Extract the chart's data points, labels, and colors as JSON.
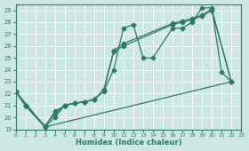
{
  "xlabel": "Humidex (Indice chaleur)",
  "xlim": [
    0,
    23
  ],
  "ylim": [
    19,
    29.5
  ],
  "yticks": [
    19,
    20,
    21,
    22,
    23,
    24,
    25,
    26,
    27,
    28,
    29
  ],
  "xticks": [
    0,
    1,
    2,
    3,
    4,
    5,
    6,
    7,
    8,
    9,
    10,
    11,
    12,
    13,
    14,
    15,
    16,
    17,
    18,
    19,
    20,
    21,
    22,
    23
  ],
  "bg_color": "#cce8e0",
  "grid_color": "#ffffff",
  "line_color": "#2d7a6b",
  "line1_x": [
    0,
    1,
    3,
    4,
    5,
    6,
    7,
    8,
    9,
    10,
    11,
    12,
    13,
    14,
    16,
    17,
    18,
    19,
    20,
    21,
    22
  ],
  "line1_y": [
    22.2,
    21.0,
    19.2,
    20.0,
    21.0,
    21.2,
    21.3,
    21.5,
    22.2,
    24.0,
    27.5,
    27.8,
    25.0,
    25.0,
    27.5,
    27.5,
    28.0,
    29.2,
    29.2,
    23.8,
    23.0
  ],
  "line2_x": [
    0,
    1,
    3,
    4,
    5,
    6,
    7,
    8,
    9,
    10,
    11,
    16,
    17,
    18,
    19,
    20,
    22
  ],
  "line2_y": [
    22.2,
    21.0,
    19.2,
    20.5,
    21.0,
    21.2,
    21.3,
    21.5,
    22.3,
    25.5,
    26.0,
    27.8,
    28.0,
    28.2,
    28.5,
    29.0,
    23.0
  ],
  "line3_x": [
    0,
    1,
    3,
    4,
    5,
    6,
    7,
    8,
    9,
    10,
    11,
    16,
    17,
    18,
    19,
    20,
    22
  ],
  "line3_y": [
    22.2,
    21.0,
    19.3,
    20.3,
    21.0,
    21.2,
    21.3,
    21.5,
    22.3,
    25.6,
    26.2,
    27.9,
    28.1,
    28.3,
    28.6,
    29.1,
    23.0
  ],
  "line4_x": [
    0,
    3,
    22
  ],
  "line4_y": [
    22.2,
    19.2,
    23.0
  ]
}
